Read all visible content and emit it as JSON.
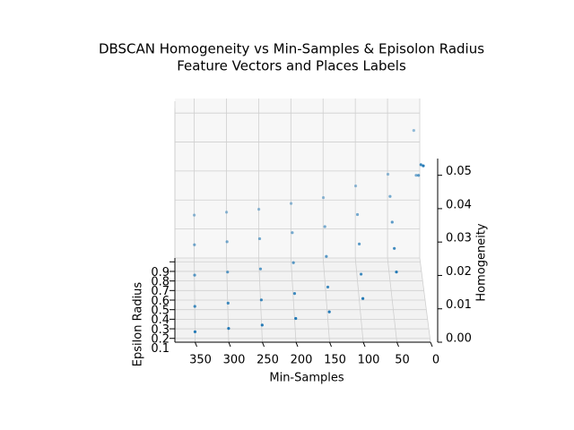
{
  "chart_data": {
    "type": "scatter3d",
    "title": "DBSCAN Homogeneity vs Min-Samples & Episolon Radius",
    "subtitle": "Feature Vectors and Places Labels",
    "xlabel": "Min-Samples",
    "ylabel": "Epsilon Radius",
    "zlabel": "Homogeneity",
    "color": "#1f77b4",
    "grid": true,
    "xlim": [
      0,
      380
    ],
    "ylim": [
      0.06,
      0.94
    ],
    "zlim": [
      0,
      0.055
    ],
    "xticks": [
      0,
      50,
      100,
      150,
      200,
      250,
      300,
      350
    ],
    "yticks": [
      0.1,
      0.2,
      0.3,
      0.4,
      0.5,
      0.6,
      0.7,
      0.8,
      0.9
    ],
    "zticks": [
      {
        "value": 0,
        "label": "0.00"
      },
      {
        "value": 0.01,
        "label": "0.01"
      },
      {
        "value": 0.02,
        "label": "0.02"
      },
      {
        "value": 0.03,
        "label": "0.03"
      },
      {
        "value": 0.04,
        "label": "0.04"
      },
      {
        "value": 0.05,
        "label": "0.05"
      }
    ],
    "x": [
      10,
      50,
      100,
      150,
      200,
      250,
      300,
      350,
      10,
      50,
      100,
      150,
      200,
      250,
      300,
      350,
      10,
      50,
      100,
      150,
      200,
      250,
      300,
      350,
      10,
      50,
      100,
      150,
      200,
      250,
      300,
      350,
      10,
      50,
      100,
      150,
      200,
      250,
      300,
      350
    ],
    "y": [
      0.1,
      0.1,
      0.1,
      0.1,
      0.1,
      0.1,
      0.1,
      0.1,
      0.3,
      0.3,
      0.3,
      0.3,
      0.3,
      0.3,
      0.3,
      0.3,
      0.5,
      0.5,
      0.5,
      0.5,
      0.5,
      0.5,
      0.5,
      0.5,
      0.7,
      0.7,
      0.7,
      0.7,
      0.7,
      0.7,
      0.7,
      0.7,
      0.9,
      0.9,
      0.9,
      0.9,
      0.9,
      0.9,
      0.9,
      0.9
    ],
    "z": [
      0.052,
      0.02,
      0.012,
      0.008,
      0.006,
      0.004,
      0.003,
      0.002,
      0.048,
      0.022,
      0.014,
      0.01,
      0.008,
      0.006,
      0.005,
      0.004,
      0.04,
      0.025,
      0.018,
      0.014,
      0.012,
      0.01,
      0.009,
      0.008,
      0.035,
      0.028,
      0.022,
      0.018,
      0.016,
      0.014,
      0.013,
      0.012,
      0.045,
      0.03,
      0.026,
      0.022,
      0.02,
      0.018,
      0.017,
      0.016
    ]
  }
}
